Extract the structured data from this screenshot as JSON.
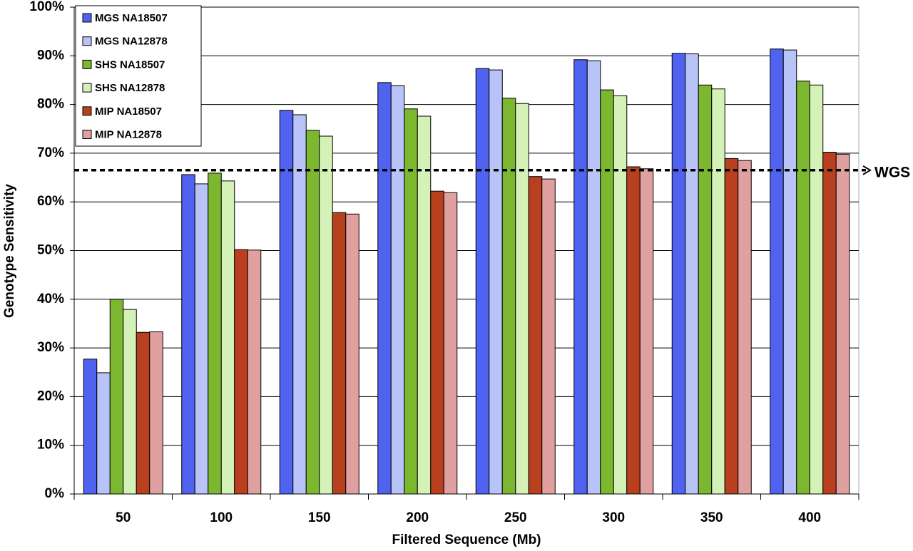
{
  "chart_data": {
    "type": "bar",
    "x_label": "Filtered Sequence (Mb)",
    "y_label": "Genotype Sensitivity",
    "categories": [
      "50",
      "100",
      "150",
      "200",
      "250",
      "300",
      "350",
      "400"
    ],
    "series": [
      {
        "name": "MGS NA18507",
        "color": "#4f62f0",
        "values": [
          27.7,
          65.6,
          78.8,
          84.5,
          87.4,
          89.2,
          90.5,
          91.4
        ]
      },
      {
        "name": "MGS NA12878",
        "color": "#b8c4f8",
        "values": [
          24.9,
          63.7,
          77.9,
          83.9,
          87.1,
          89.0,
          90.4,
          91.2
        ]
      },
      {
        "name": "SHS NA18507",
        "color": "#7cb82f",
        "values": [
          40.0,
          65.9,
          74.7,
          79.1,
          81.3,
          83.0,
          84.0,
          84.8
        ]
      },
      {
        "name": "SHS NA12878",
        "color": "#d4f2b8",
        "values": [
          37.9,
          64.3,
          73.5,
          77.6,
          80.2,
          81.8,
          83.2,
          84.0
        ]
      },
      {
        "name": "MIP NA18507",
        "color": "#b8401e",
        "values": [
          33.2,
          50.2,
          57.8,
          62.2,
          65.2,
          67.2,
          68.9,
          70.2
        ]
      },
      {
        "name": "MIP NA12878",
        "color": "#e0a0a0",
        "values": [
          33.3,
          50.1,
          57.5,
          61.9,
          64.7,
          66.8,
          68.5,
          69.8
        ]
      }
    ],
    "ylim": [
      0,
      100
    ],
    "yticks": [
      {
        "value": 0,
        "label": "0%"
      },
      {
        "value": 10,
        "label": "10%"
      },
      {
        "value": 20,
        "label": "20%"
      },
      {
        "value": 30,
        "label": "30%"
      },
      {
        "value": 40,
        "label": "40%"
      },
      {
        "value": 50,
        "label": "50%"
      },
      {
        "value": 60,
        "label": "60%"
      },
      {
        "value": 70,
        "label": "70%"
      },
      {
        "value": 80,
        "label": "80%"
      },
      {
        "value": 90,
        "label": "90%"
      },
      {
        "value": 100,
        "label": "100%"
      }
    ],
    "grid": true,
    "legend": "top-left",
    "reference_line": {
      "value": 66.5,
      "label": "WGS"
    }
  }
}
